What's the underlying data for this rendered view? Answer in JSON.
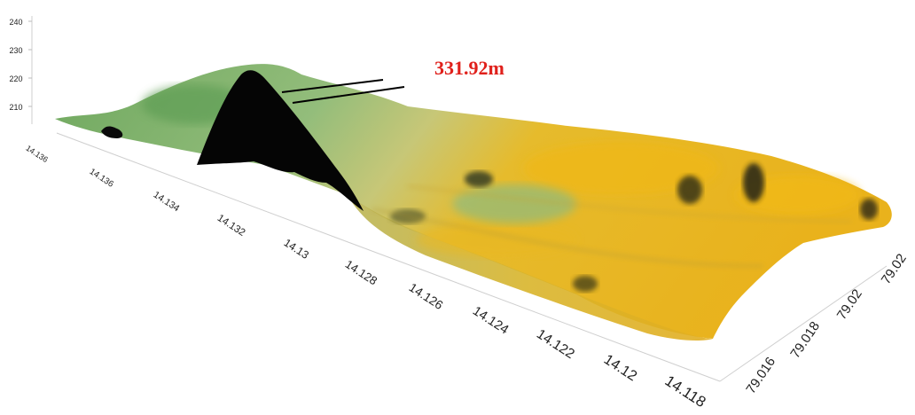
{
  "chart_data": {
    "type": "surface3d",
    "annotation": {
      "text": "331.92m",
      "color": "#e0201b"
    },
    "z_axis": {
      "ticks": [
        "240",
        "230",
        "220",
        "210"
      ]
    },
    "x_axis": {
      "ticks": [
        "14.136",
        "14.136",
        "14.134",
        "14.132",
        "14.13",
        "14.128",
        "14.126",
        "14.124",
        "14.122",
        "14.12",
        "14.118"
      ]
    },
    "y_axis": {
      "ticks": [
        "79.016",
        "79.018",
        "79.02",
        "79.02"
      ]
    },
    "colors": {
      "low": "#e9b51a",
      "mid": "#c9c46a",
      "high": "#7fb36d",
      "shadow": "#000000",
      "axis": "#c8c8c8"
    }
  }
}
